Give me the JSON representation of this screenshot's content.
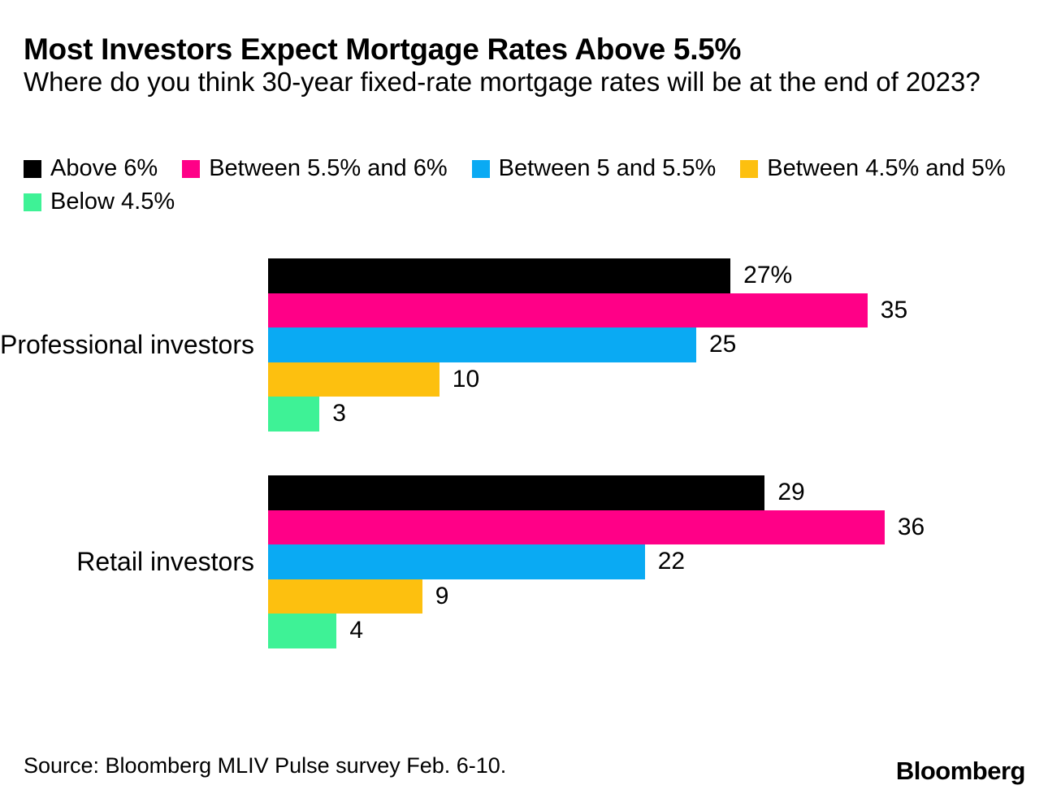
{
  "header": {
    "title": "Most Investors Expect Mortgage Rates Above 5.5%",
    "subtitle": "Where do you think 30-year fixed-rate mortgage rates will be at the end of 2023?"
  },
  "colors": {
    "above_6": "#000000",
    "between_55_6": "#FF0087",
    "between_5_55": "#0AAAF3",
    "between_45_5": "#FDC00F",
    "below_45": "#3EF296"
  },
  "legend": {
    "items": [
      {
        "label": "Above 6%",
        "color": "#000000"
      },
      {
        "label": "Between 5.5% and 6%",
        "color": "#FF0087"
      },
      {
        "label": "Between 5 and 5.5%",
        "color": "#0AAAF3"
      },
      {
        "label": "Between 4.5% and 5%",
        "color": "#FDC00F"
      },
      {
        "label": "Below 4.5%",
        "color": "#3EF296"
      }
    ]
  },
  "chart_data": {
    "type": "bar",
    "orientation": "horizontal",
    "title": "Most Investors Expect Mortgage Rates Above 5.5%",
    "subtitle": "Where do you think 30-year fixed-rate mortgage rates will be at the end of 2023?",
    "categories": [
      "Professional investors",
      "Retail investors"
    ],
    "series": [
      {
        "name": "Above 6%",
        "color": "#000000",
        "values": [
          27,
          29
        ]
      },
      {
        "name": "Between 5.5% and 6%",
        "color": "#FF0087",
        "values": [
          35,
          36
        ]
      },
      {
        "name": "Between 5 and 5.5%",
        "color": "#0AAAF3",
        "values": [
          25,
          22
        ]
      },
      {
        "name": "Between 4.5% and 5%",
        "color": "#FDC00F",
        "values": [
          10,
          9
        ]
      },
      {
        "name": "Below 4.5%",
        "color": "#3EF296",
        "values": [
          3,
          4
        ]
      }
    ],
    "value_labels": [
      [
        "27%",
        "35",
        "25",
        "10",
        "3"
      ],
      [
        "29",
        "36",
        "22",
        "9",
        "4"
      ]
    ],
    "xlim": [
      0,
      36
    ],
    "grid": false,
    "legend_position": "top",
    "xlabel": "",
    "ylabel": ""
  },
  "footer": {
    "source": "Source: Bloomberg MLIV Pulse survey Feb. 6-10.",
    "brand": "Bloomberg"
  }
}
